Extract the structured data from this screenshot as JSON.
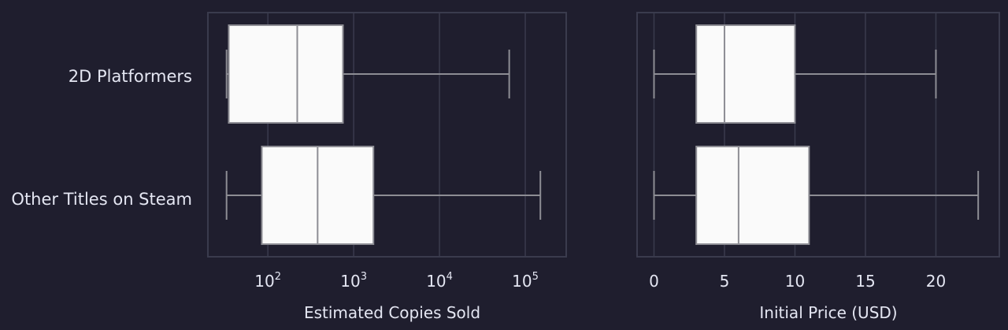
{
  "chart_data": [
    {
      "type": "boxplot",
      "orientation": "horizontal",
      "xlabel": "Estimated Copies Sold",
      "xscale": "log",
      "xlim": [
        20,
        300000
      ],
      "x_ticks": [
        {
          "value": 100,
          "base": "10",
          "exp": "2"
        },
        {
          "value": 1000,
          "base": "10",
          "exp": "3"
        },
        {
          "value": 10000,
          "base": "10",
          "exp": "4"
        },
        {
          "value": 100000,
          "base": "10",
          "exp": "5"
        }
      ],
      "categories": [
        "2D Platformers",
        "Other Titles on Steam"
      ],
      "boxes": [
        {
          "whisker_low": 33,
          "q1": 35,
          "median": 220,
          "q3": 750,
          "whisker_high": 65000
        },
        {
          "whisker_low": 33,
          "q1": 85,
          "median": 380,
          "q3": 1700,
          "whisker_high": 150000
        }
      ],
      "grid": true
    },
    {
      "type": "boxplot",
      "orientation": "horizontal",
      "xlabel": "Initial Price (USD)",
      "xscale": "linear",
      "xlim": [
        -1.2,
        24.5
      ],
      "x_ticks": [
        {
          "value": 0,
          "label": "0"
        },
        {
          "value": 5,
          "label": "5"
        },
        {
          "value": 10,
          "label": "10"
        },
        {
          "value": 15,
          "label": "15"
        },
        {
          "value": 20,
          "label": "20"
        }
      ],
      "categories": [
        "2D Platformers",
        "Other Titles on Steam"
      ],
      "boxes": [
        {
          "whisker_low": 0,
          "q1": 3,
          "median": 5,
          "q3": 10,
          "whisker_high": 20
        },
        {
          "whisker_low": 0,
          "q1": 3,
          "median": 6,
          "q3": 11,
          "whisker_high": 23
        }
      ],
      "grid": true
    }
  ],
  "style": {
    "background": "#1f1e2e",
    "grid_color": "#3a3b4d",
    "frame_color": "#3a3b4d",
    "box_fill": "#fafafa",
    "line_color": "#8d8d94",
    "text_color": "#e4e6f2"
  }
}
